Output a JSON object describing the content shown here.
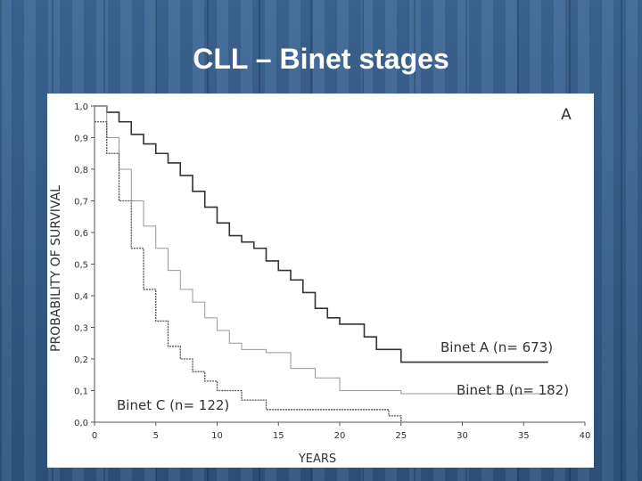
{
  "slide": {
    "title": "CLL – Binet stages"
  },
  "chart_data": {
    "type": "line",
    "panel_label": "A",
    "xlabel": "YEARS",
    "ylabel": "PROBABILITY OF SURVIVAL",
    "xlim": [
      0,
      40
    ],
    "ylim": [
      0,
      1
    ],
    "x_ticks": [
      "0",
      "5",
      "10",
      "15",
      "20",
      "25",
      "30",
      "35",
      "40"
    ],
    "y_ticks": [
      "0,0",
      "0,1",
      "0,2",
      "0,3",
      "0,4",
      "0,5",
      "0,6",
      "0,7",
      "0,8",
      "0,9",
      "1,0"
    ],
    "grid": false,
    "step": true,
    "series": [
      {
        "name": "Binet A (n= 673)",
        "color": "#333333",
        "x": [
          0,
          1,
          2,
          3,
          4,
          5,
          6,
          7,
          8,
          9,
          10,
          11,
          12,
          13,
          14,
          15,
          16,
          17,
          18,
          19,
          20,
          21,
          22,
          23,
          24,
          25,
          30,
          35,
          37
        ],
        "y": [
          1.0,
          0.98,
          0.95,
          0.91,
          0.88,
          0.85,
          0.82,
          0.78,
          0.73,
          0.68,
          0.63,
          0.59,
          0.57,
          0.55,
          0.51,
          0.48,
          0.45,
          0.41,
          0.36,
          0.33,
          0.31,
          0.31,
          0.27,
          0.23,
          0.23,
          0.19,
          0.19,
          0.19,
          0.19
        ]
      },
      {
        "name": "Binet B (n= 182)",
        "color": "#999999",
        "x": [
          0,
          1,
          2,
          3,
          4,
          5,
          6,
          7,
          8,
          9,
          10,
          11,
          12,
          14,
          16,
          18,
          20,
          22,
          25,
          37
        ],
        "y": [
          1.0,
          0.9,
          0.8,
          0.7,
          0.62,
          0.55,
          0.48,
          0.42,
          0.38,
          0.33,
          0.29,
          0.25,
          0.23,
          0.22,
          0.17,
          0.14,
          0.1,
          0.1,
          0.09,
          0.09
        ]
      },
      {
        "name": "Binet C (n= 122)",
        "color": "#555555",
        "x": [
          0,
          1,
          2,
          3,
          4,
          5,
          6,
          7,
          8,
          9,
          10,
          12,
          14,
          20,
          24,
          25
        ],
        "y": [
          0.95,
          0.85,
          0.7,
          0.55,
          0.42,
          0.32,
          0.24,
          0.2,
          0.16,
          0.13,
          0.1,
          0.07,
          0.04,
          0.04,
          0.02,
          0.0
        ]
      }
    ],
    "labels": [
      "Binet A (n= 673)",
      "Binet B (n= 182)",
      "Binet C (n= 122)"
    ]
  }
}
